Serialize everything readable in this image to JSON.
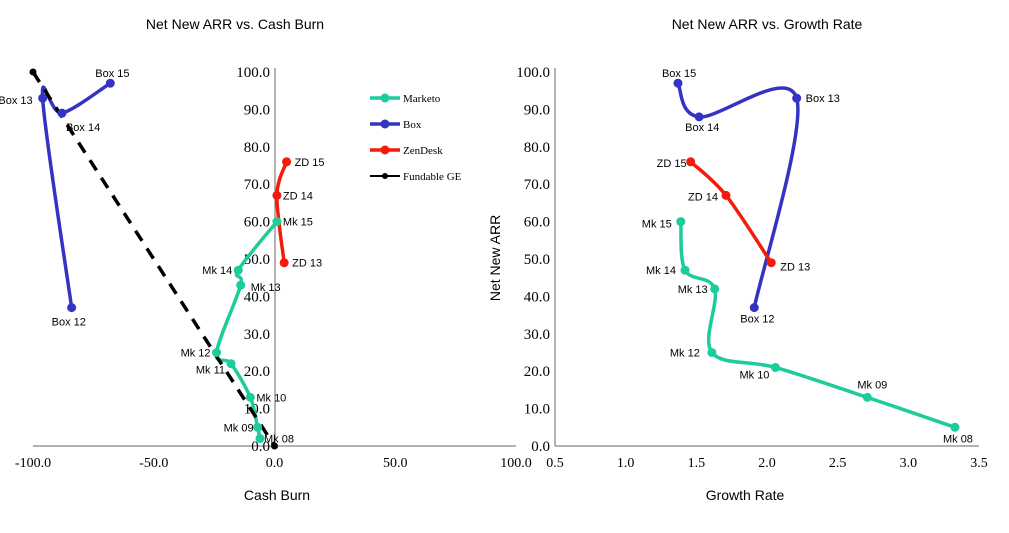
{
  "colors": {
    "marketo": "#1ccc9a",
    "box": "#3333c4",
    "zendesk": "#f41b0c",
    "fundable": "#000000",
    "axis": "#666666",
    "text": "#000000"
  },
  "chart_data": [
    {
      "type": "line",
      "title": "Net New ARR vs. Cash Burn",
      "xlabel": "Cash Burn",
      "ylabel": "",
      "xlim": [
        -100,
        100
      ],
      "ylim": [
        0,
        100
      ],
      "x_ticks": [
        "-100.0",
        "-50.0",
        "0.0",
        "50.0",
        "100.0"
      ],
      "y_ticks": [
        "0.0",
        "10.0",
        "20.0",
        "30.0",
        "40.0",
        "50.0",
        "60.0",
        "70.0",
        "80.0",
        "90.0",
        "100.0"
      ],
      "legend": [
        "Marketo",
        "Box",
        "ZenDesk",
        "Fundable GE"
      ],
      "legend_position": "top-right",
      "series": [
        {
          "name": "Marketo",
          "color_key": "marketo",
          "points": [
            {
              "label": "Mk 08",
              "x": -6,
              "y": 2
            },
            {
              "label": "Mk 09",
              "x": -7,
              "y": 5
            },
            {
              "label": "Mk 10",
              "x": -10,
              "y": 13
            },
            {
              "label": "Mk 11",
              "x": -18,
              "y": 22
            },
            {
              "label": "Mk 12",
              "x": -24,
              "y": 25
            },
            {
              "label": "Mk 13",
              "x": -14,
              "y": 43
            },
            {
              "label": "Mk 14",
              "x": -15,
              "y": 47
            },
            {
              "label": "Mk 15",
              "x": 1,
              "y": 60
            }
          ]
        },
        {
          "name": "Box",
          "color_key": "box",
          "points": [
            {
              "label": "Box 12",
              "x": -84,
              "y": 37
            },
            {
              "label": "Box 13",
              "x": -96,
              "y": 93
            },
            {
              "label": "Box 14",
              "x": -88,
              "y": 89
            },
            {
              "label": "Box 15",
              "x": -68,
              "y": 97
            }
          ]
        },
        {
          "name": "ZenDesk",
          "color_key": "zendesk",
          "points": [
            {
              "label": "ZD 13",
              "x": 4,
              "y": 49
            },
            {
              "label": "ZD 14",
              "x": 1,
              "y": 67
            },
            {
              "label": "ZD 15",
              "x": 5,
              "y": 76
            }
          ]
        },
        {
          "name": "Fundable GE",
          "color_key": "fundable",
          "dashed": true,
          "points": [
            {
              "label": "",
              "x": -100,
              "y": 100
            },
            {
              "label": "",
              "x": 0,
              "y": 0
            }
          ]
        }
      ]
    },
    {
      "type": "line",
      "title": "Net New ARR vs. Growth Rate",
      "xlabel": "Growth Rate",
      "ylabel": "Net New ARR",
      "xlim": [
        0.5,
        3.5
      ],
      "ylim": [
        0,
        100
      ],
      "x_ticks": [
        "0.5",
        "1.0",
        "1.5",
        "2.0",
        "2.5",
        "3.0",
        "3.5"
      ],
      "y_ticks": [
        "0.0",
        "10.0",
        "20.0",
        "30.0",
        "40.0",
        "50.0",
        "60.0",
        "70.0",
        "80.0",
        "90.0",
        "100.0"
      ],
      "series": [
        {
          "name": "Marketo",
          "color_key": "marketo",
          "points": [
            {
              "label": "Mk 08",
              "x": 3.33,
              "y": 5
            },
            {
              "label": "Mk 09",
              "x": 2.71,
              "y": 13
            },
            {
              "label": "Mk 10",
              "x": 2.06,
              "y": 21
            },
            {
              "label": "Mk 12",
              "x": 1.61,
              "y": 25
            },
            {
              "label": "Mk 13",
              "x": 1.63,
              "y": 42
            },
            {
              "label": "Mk 14",
              "x": 1.42,
              "y": 47
            },
            {
              "label": "Mk 15",
              "x": 1.39,
              "y": 60
            }
          ]
        },
        {
          "name": "Box",
          "color_key": "box",
          "points": [
            {
              "label": "Box 12",
              "x": 1.91,
              "y": 37
            },
            {
              "label": "Box 13",
              "x": 2.21,
              "y": 93
            },
            {
              "label": "Box 14",
              "x": 1.52,
              "y": 88
            },
            {
              "label": "Box 15",
              "x": 1.37,
              "y": 97
            }
          ]
        },
        {
          "name": "ZenDesk",
          "color_key": "zendesk",
          "points": [
            {
              "label": "ZD 15",
              "x": 1.46,
              "y": 76
            },
            {
              "label": "ZD 14",
              "x": 1.71,
              "y": 67
            },
            {
              "label": "ZD 13",
              "x": 2.03,
              "y": 49
            }
          ]
        }
      ]
    }
  ]
}
